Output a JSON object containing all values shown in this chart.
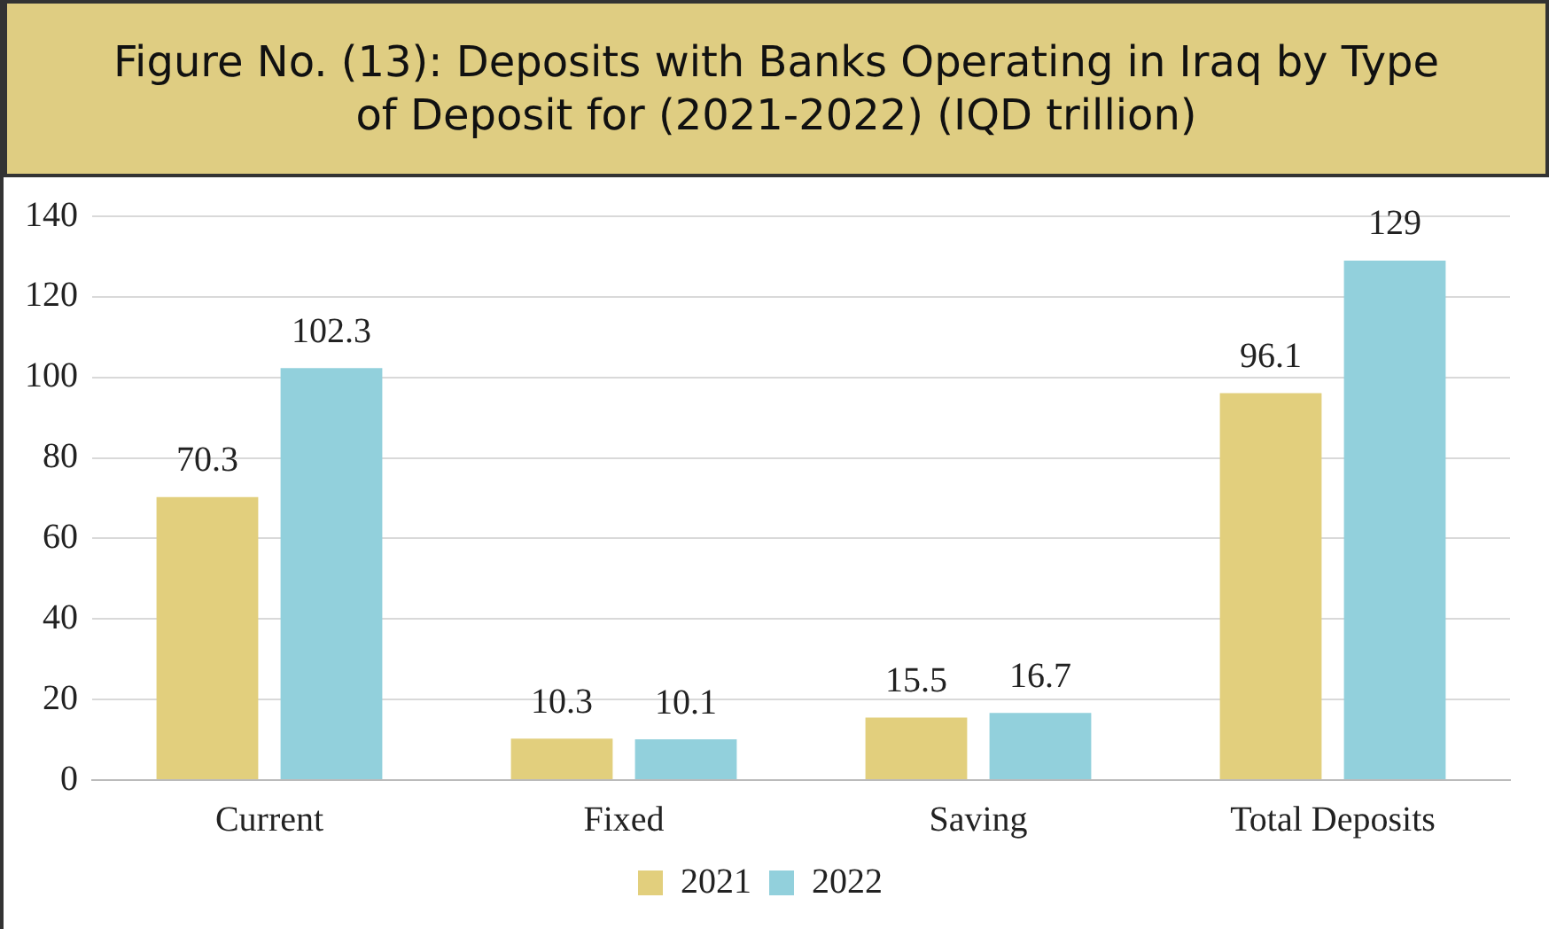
{
  "chart_data": {
    "type": "bar",
    "title": "Figure No. (13): Deposits with Banks Operating in Iraq by Type of Deposit for (2021-2022) (IQD trillion)",
    "categories": [
      "Current",
      "Fixed",
      "Saving",
      "Total Deposits"
    ],
    "series": [
      {
        "name": "2021",
        "color": "#e2cf7d",
        "values": [
          70.3,
          10.3,
          15.5,
          96.1
        ]
      },
      {
        "name": "2022",
        "color": "#92d0dc",
        "values": [
          102.3,
          10.1,
          16.7,
          129
        ]
      }
    ],
    "ylim": [
      0,
      140
    ],
    "yticks": [
      0,
      20,
      40,
      60,
      80,
      100,
      120,
      140
    ],
    "grid": "y",
    "legend": "bottom",
    "data_labels": true
  }
}
